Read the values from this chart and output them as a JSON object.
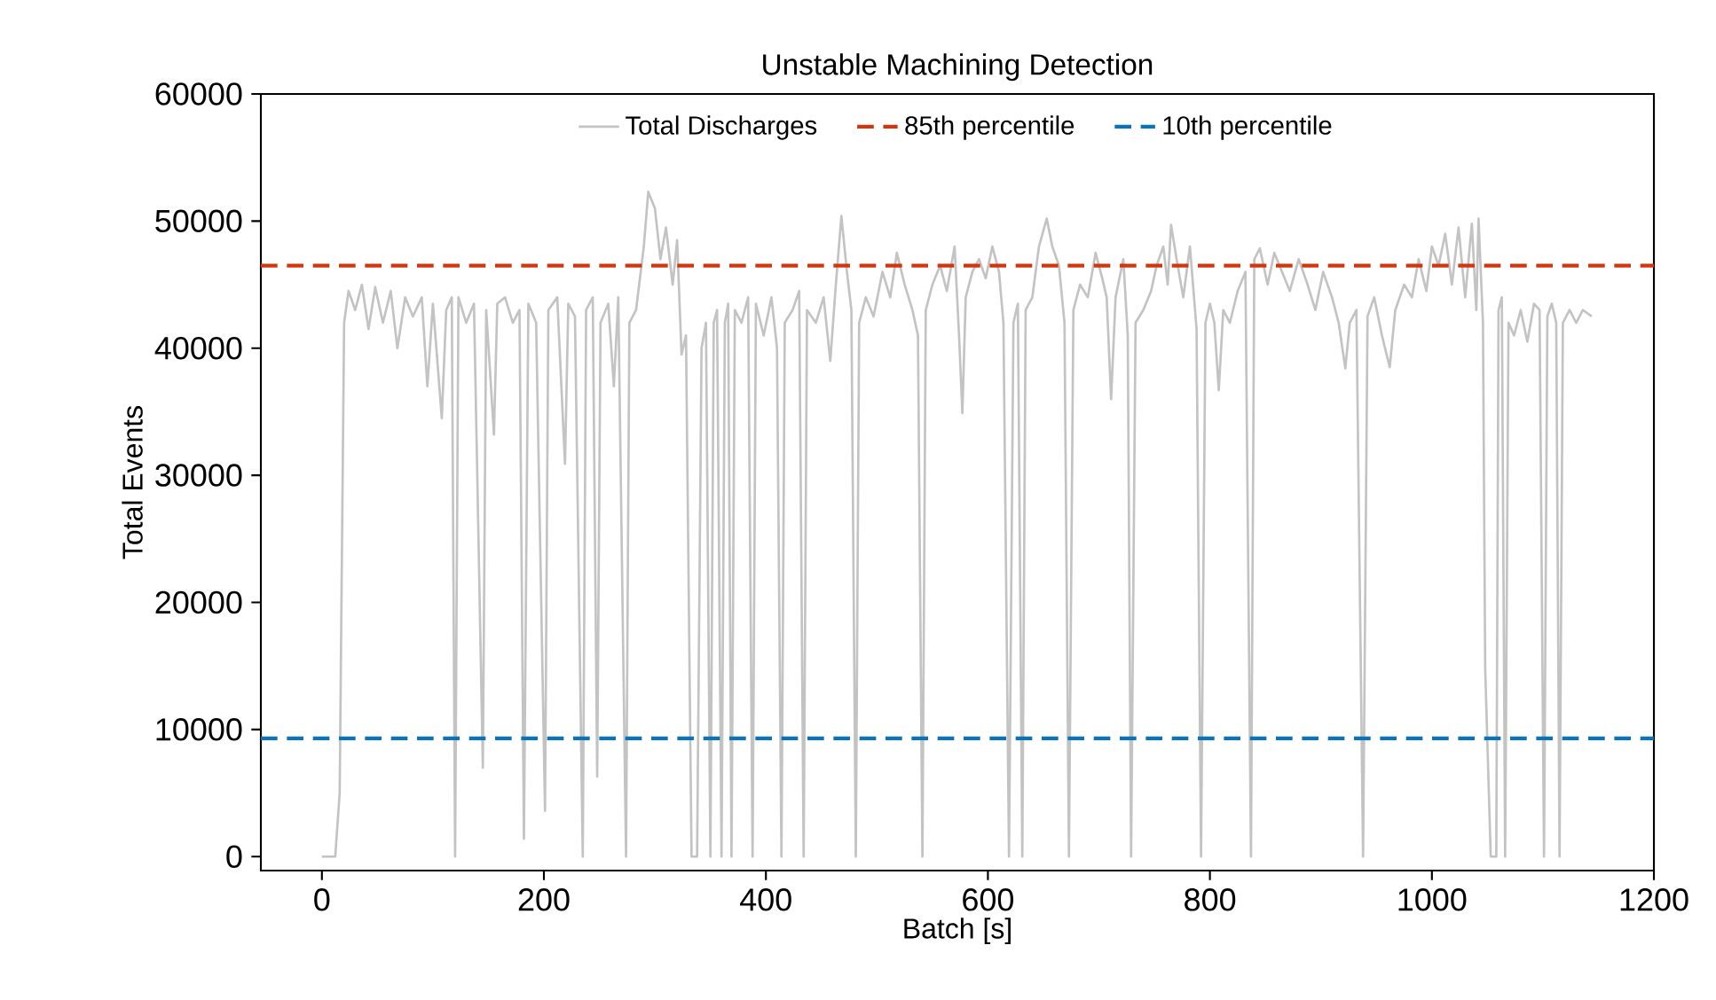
{
  "chart_data": {
    "type": "line",
    "title": "Unstable Machining Detection",
    "xlabel": "Batch [s]",
    "ylabel": "Total Events",
    "xlim": [
      -55,
      1200
    ],
    "ylim": [
      -1100,
      60000
    ],
    "xticks": [
      0,
      200,
      400,
      600,
      800,
      1000,
      1200
    ],
    "yticks": [
      0,
      10000,
      20000,
      30000,
      40000,
      50000,
      60000
    ],
    "grid": false,
    "legend": "top",
    "marker": "none",
    "series": [
      {
        "name": "Total Discharges",
        "color": "#c3c3c3",
        "line_style": "solid",
        "x": [
          0,
          12,
          16,
          20,
          24,
          30,
          36,
          42,
          48,
          55,
          62,
          68,
          75,
          82,
          90,
          95,
          100,
          108,
          112,
          117,
          120,
          123,
          130,
          137,
          145,
          148,
          155,
          158,
          165,
          172,
          178,
          182,
          186,
          193,
          201,
          204,
          212,
          219,
          222,
          228,
          235,
          238,
          244,
          248,
          251,
          258,
          263,
          267,
          274,
          277,
          283,
          290,
          294,
          300,
          305,
          310,
          316,
          320,
          324,
          328,
          333,
          338,
          342,
          346,
          350,
          353,
          356,
          360,
          363,
          366,
          369,
          372,
          378,
          384,
          388,
          391,
          398,
          405,
          410,
          414,
          417,
          424,
          430,
          434,
          437,
          445,
          452,
          458,
          463,
          468,
          473,
          477,
          481,
          484,
          490,
          497,
          505,
          512,
          518,
          525,
          532,
          537,
          541,
          544,
          550,
          557,
          563,
          570,
          574,
          577,
          580,
          586,
          592,
          598,
          604,
          610,
          614,
          619,
          623,
          627,
          631,
          634,
          640,
          646,
          653,
          658,
          664,
          669,
          673,
          677,
          683,
          690,
          697,
          703,
          707,
          711,
          715,
          722,
          726,
          729,
          733,
          740,
          747,
          752,
          758,
          762,
          765,
          770,
          776,
          782,
          788,
          792,
          796,
          800,
          804,
          808,
          812,
          818,
          825,
          832,
          837,
          840,
          845,
          852,
          858,
          865,
          872,
          880,
          888,
          895,
          902,
          910,
          916,
          922,
          926,
          932,
          938,
          942,
          948,
          955,
          962,
          967,
          975,
          982,
          988,
          995,
          1000,
          1006,
          1012,
          1018,
          1024,
          1030,
          1036,
          1040,
          1042,
          1046,
          1048,
          1053,
          1058,
          1060,
          1063,
          1066,
          1069,
          1074,
          1080,
          1086,
          1092,
          1097,
          1101,
          1104,
          1108,
          1112,
          1115,
          1118,
          1124,
          1130,
          1136,
          1144
        ],
        "values": [
          0,
          0,
          5000,
          42000,
          44500,
          43000,
          45000,
          41500,
          44800,
          42000,
          44500,
          40000,
          44000,
          42500,
          44000,
          37000,
          43500,
          34500,
          43000,
          44000,
          0,
          44000,
          42000,
          43500,
          7000,
          43000,
          33200,
          43500,
          44000,
          42000,
          43000,
          1400,
          43500,
          42000,
          3600,
          43000,
          44000,
          30900,
          43500,
          42500,
          0,
          43000,
          44000,
          6300,
          42000,
          43500,
          37000,
          44000,
          0,
          42000,
          43000,
          48000,
          52300,
          51000,
          47000,
          49500,
          45000,
          48500,
          39500,
          41000,
          0,
          0,
          40000,
          42000,
          0,
          42000,
          43000,
          0,
          42000,
          43500,
          0,
          43000,
          42000,
          44000,
          0,
          43500,
          41000,
          44000,
          40000,
          0,
          42000,
          43000,
          44500,
          0,
          43000,
          42000,
          44000,
          39000,
          45000,
          50400,
          46000,
          43000,
          0,
          42000,
          44000,
          42500,
          46000,
          44000,
          47500,
          45000,
          43000,
          41000,
          0,
          43000,
          45000,
          46500,
          44500,
          48000,
          41000,
          34900,
          44000,
          46000,
          47000,
          45500,
          48000,
          46000,
          42000,
          0,
          42000,
          43500,
          0,
          43000,
          44000,
          48000,
          50200,
          48000,
          46500,
          42000,
          0,
          43000,
          45000,
          44000,
          47500,
          45500,
          44000,
          36000,
          44000,
          47000,
          41000,
          0,
          42000,
          43000,
          44500,
          46500,
          48000,
          45000,
          49700,
          47000,
          44000,
          48000,
          41500,
          0,
          42000,
          43500,
          42000,
          36700,
          43000,
          42000,
          44500,
          46000,
          0,
          47000,
          47850,
          45000,
          47500,
          46000,
          44500,
          47000,
          45000,
          43000,
          46000,
          44000,
          42000,
          38400,
          42000,
          43000,
          0,
          42500,
          44000,
          41000,
          38500,
          43000,
          45000,
          44000,
          47000,
          44500,
          48000,
          46500,
          49000,
          45000,
          49500,
          44000,
          49800,
          43000,
          50200,
          42000,
          14800,
          0,
          0,
          43000,
          44000,
          0,
          42000,
          41000,
          43000,
          40500,
          43500,
          43000,
          0,
          42500,
          43500,
          42000,
          0,
          42000,
          43000,
          42000,
          43000,
          42500
        ]
      }
    ],
    "ref_lines": [
      {
        "axis": "y",
        "value": 46500,
        "label": "85th percentile",
        "color": "#d2360f",
        "line_style": "dashed"
      },
      {
        "axis": "y",
        "value": 9300,
        "label": "10th percentile",
        "color": "#0a74b8",
        "line_style": "dashed"
      }
    ]
  }
}
